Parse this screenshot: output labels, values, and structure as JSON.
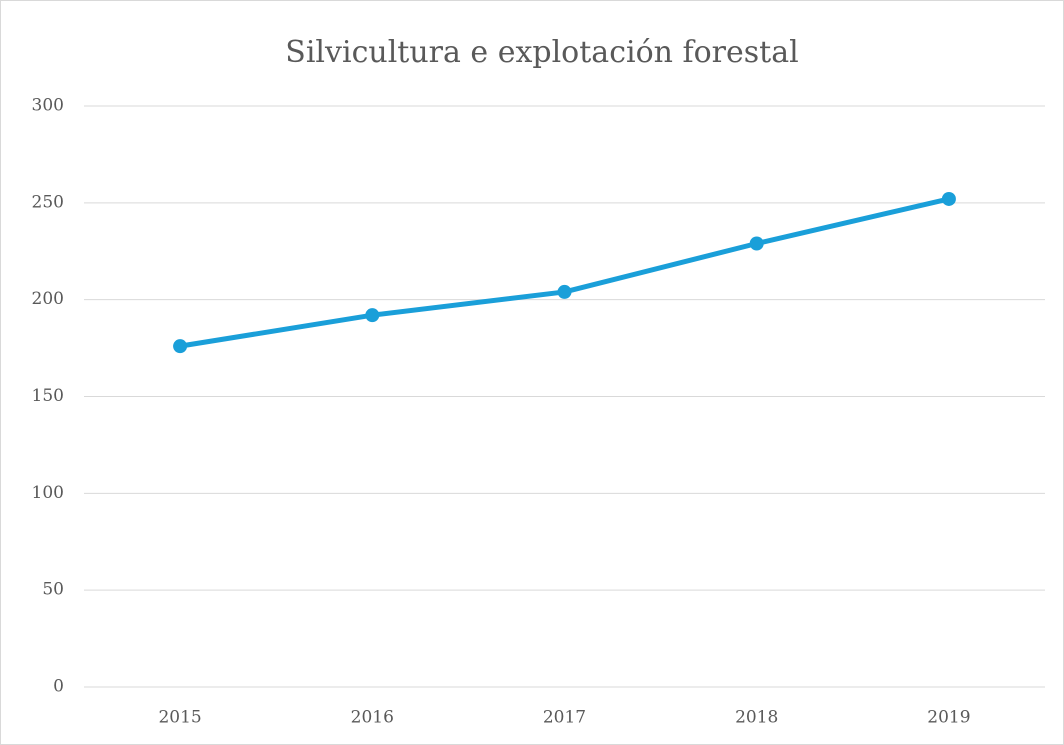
{
  "chart_data": {
    "type": "line",
    "title": "Silvicultura e explotación forestal",
    "categories": [
      "2015",
      "2016",
      "2017",
      "2018",
      "2019"
    ],
    "series": [
      {
        "name": "Silvicultura e explotación forestal",
        "color": "#1a9fd9",
        "values": [
          176,
          192,
          204,
          229,
          252
        ]
      }
    ],
    "ylim": [
      0,
      300
    ],
    "yticks": [
      0,
      50,
      100,
      150,
      200,
      250,
      300
    ],
    "grid": true
  }
}
